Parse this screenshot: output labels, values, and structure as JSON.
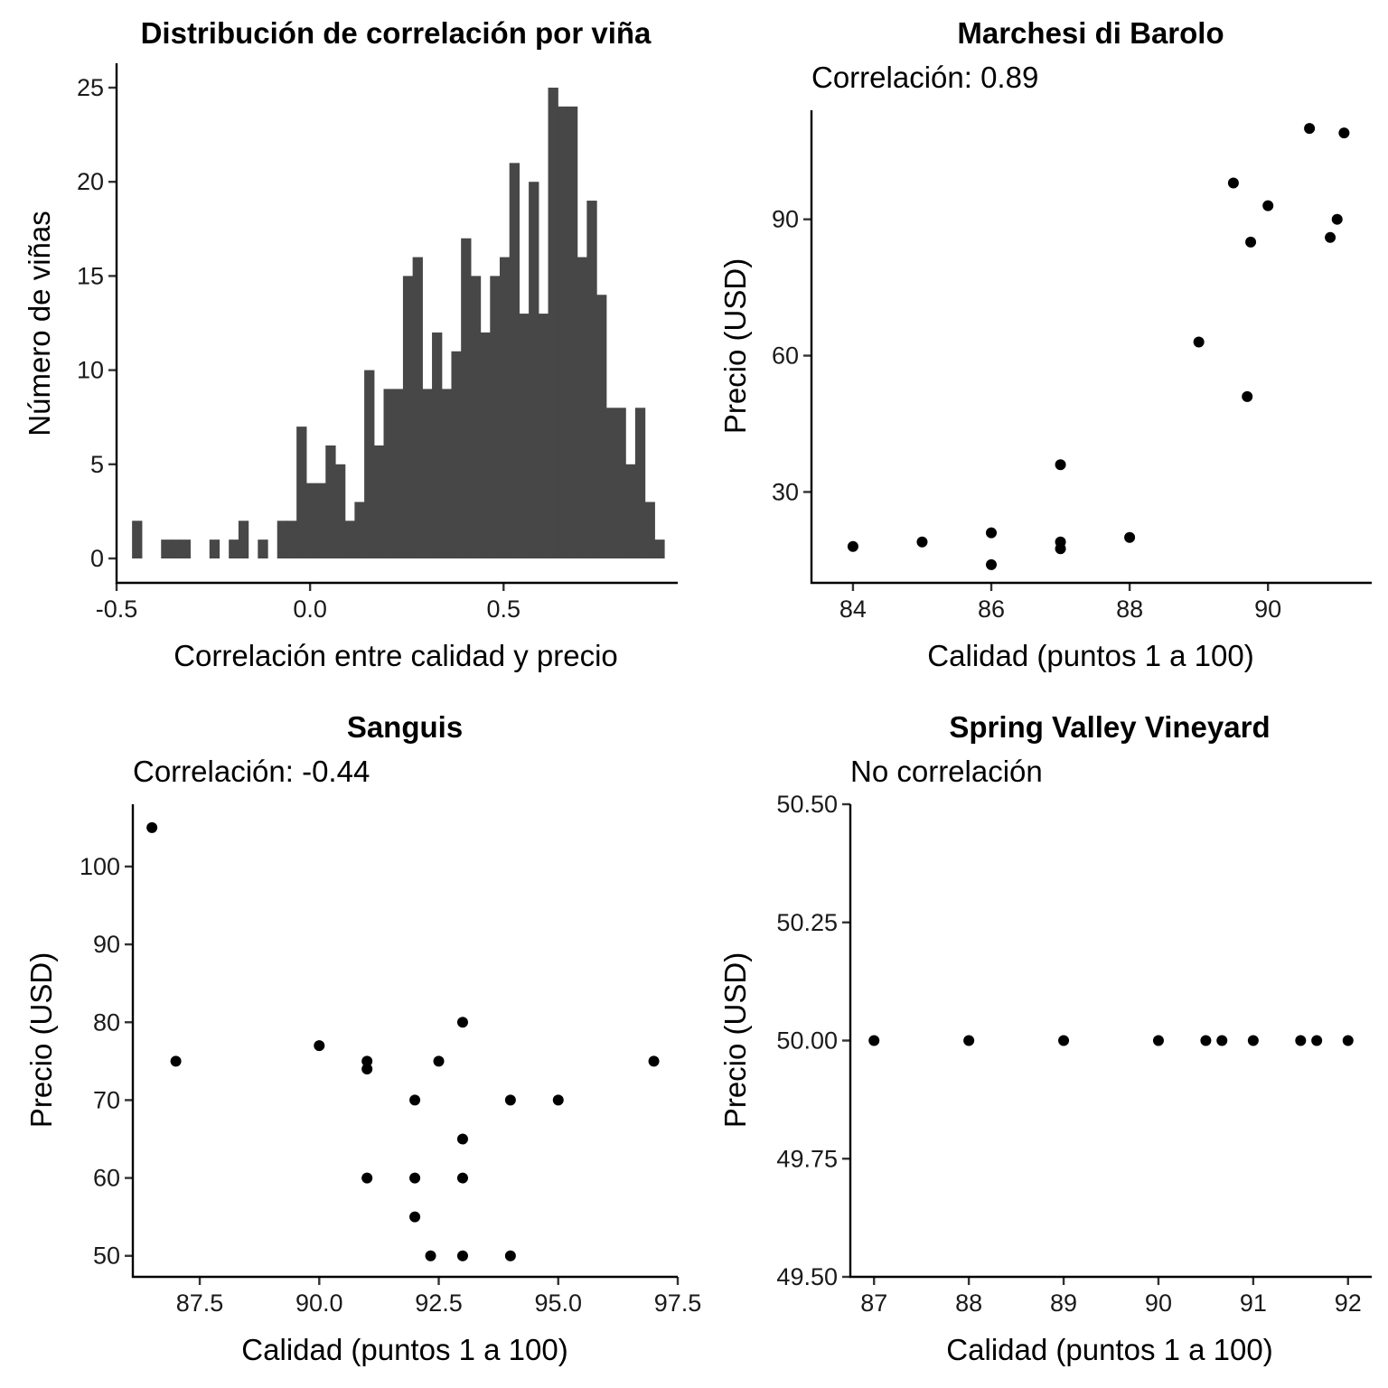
{
  "chart_data": [
    {
      "type": "bar",
      "subtype": "histogram",
      "title": "Distribución de correlación por viña",
      "subtitle": "",
      "xlabel": "Correlación entre calidad y precio",
      "ylabel": "Número de viñas",
      "xlim": [
        -0.5,
        0.95
      ],
      "ylim": [
        0,
        25
      ],
      "xticks": [
        -0.5,
        0.0,
        0.5
      ],
      "xtick_labels": [
        "-0.5",
        "0.0",
        "0.5"
      ],
      "yticks": [
        0,
        5,
        10,
        15,
        20,
        25
      ],
      "ytick_labels": [
        "0",
        "5",
        "10",
        "15",
        "20",
        "25"
      ],
      "bin_width": 0.025,
      "x_start": -0.46,
      "values": [
        2,
        0,
        0,
        1,
        1,
        1,
        0,
        0,
        1,
        0,
        1,
        2,
        0,
        1,
        0,
        2,
        2,
        7,
        4,
        4,
        6,
        5,
        2,
        3,
        10,
        6,
        9,
        9,
        15,
        16,
        9,
        12,
        9,
        11,
        17,
        15,
        12,
        15,
        16,
        21,
        13,
        20,
        13,
        25,
        24,
        24,
        16,
        19,
        14,
        8,
        8,
        5,
        8,
        3,
        1
      ],
      "color": "#474747",
      "grid": false
    },
    {
      "type": "scatter",
      "title": "Marchesi di Barolo",
      "subtitle": "Correlación: 0.89",
      "xlabel": "Calidad (puntos 1 a 100)",
      "ylabel": "Precio (USD)",
      "xlim": [
        83.4,
        91.5
      ],
      "ylim": [
        10,
        114
      ],
      "xticks": [
        84,
        86,
        88,
        90
      ],
      "xtick_labels": [
        "84",
        "86",
        "88",
        "90"
      ],
      "yticks": [
        30,
        60,
        90
      ],
      "ytick_labels": [
        "30",
        "60",
        "90"
      ],
      "points": [
        [
          84,
          18
        ],
        [
          85,
          19
        ],
        [
          86,
          21
        ],
        [
          86,
          14
        ],
        [
          87,
          36
        ],
        [
          87,
          19
        ],
        [
          87,
          17.5
        ],
        [
          88,
          20
        ],
        [
          89,
          63
        ],
        [
          89.5,
          98
        ],
        [
          89.7,
          51
        ],
        [
          89.75,
          85
        ],
        [
          90,
          93
        ],
        [
          90.6,
          110
        ],
        [
          90.9,
          86
        ],
        [
          91,
          90
        ],
        [
          91.1,
          109
        ]
      ],
      "color": "#000000",
      "grid": false
    },
    {
      "type": "scatter",
      "title": "Sanguis",
      "subtitle": "Correlación: -0.44",
      "xlabel": "Calidad (puntos 1 a 100)",
      "ylabel": "Precio (USD)",
      "xlim": [
        86.1,
        97.5
      ],
      "ylim": [
        47.3,
        108
      ],
      "xticks": [
        87.5,
        90.0,
        92.5,
        95.0,
        97.5
      ],
      "xtick_labels": [
        "87.5",
        "90.0",
        "92.5",
        "95.0",
        "97.5"
      ],
      "yticks": [
        50,
        60,
        70,
        80,
        90,
        100
      ],
      "ytick_labels": [
        "50",
        "60",
        "70",
        "80",
        "90",
        "100"
      ],
      "points": [
        [
          86.5,
          105
        ],
        [
          87,
          75
        ],
        [
          90,
          77
        ],
        [
          91,
          75
        ],
        [
          91,
          74
        ],
        [
          91,
          60
        ],
        [
          92,
          70
        ],
        [
          92,
          60
        ],
        [
          92,
          55
        ],
        [
          92.33,
          50
        ],
        [
          92.5,
          75
        ],
        [
          93,
          80
        ],
        [
          93,
          65
        ],
        [
          93,
          60
        ],
        [
          93,
          50
        ],
        [
          94,
          70
        ],
        [
          94,
          50
        ],
        [
          95,
          70
        ],
        [
          97,
          75
        ]
      ],
      "color": "#000000",
      "grid": false
    },
    {
      "type": "scatter",
      "title": "Spring Valley Vineyard",
      "subtitle": "No correlación",
      "xlabel": "Calidad (puntos 1 a 100)",
      "ylabel": "Precio (USD)",
      "xlim": [
        86.75,
        92.25
      ],
      "ylim": [
        49.5,
        50.5
      ],
      "xticks": [
        87,
        88,
        89,
        90,
        91,
        92
      ],
      "xtick_labels": [
        "87",
        "88",
        "89",
        "90",
        "91",
        "92"
      ],
      "yticks": [
        49.5,
        49.75,
        50.0,
        50.25,
        50.5
      ],
      "ytick_labels": [
        "49.50",
        "49.75",
        "50.00",
        "50.25",
        "50.50"
      ],
      "points": [
        [
          87,
          50
        ],
        [
          88,
          50
        ],
        [
          89,
          50
        ],
        [
          90,
          50
        ],
        [
          90.5,
          50
        ],
        [
          90.67,
          50
        ],
        [
          91,
          50
        ],
        [
          91.5,
          50
        ],
        [
          91.67,
          50
        ],
        [
          92,
          50
        ]
      ],
      "color": "#000000",
      "grid": false
    }
  ]
}
